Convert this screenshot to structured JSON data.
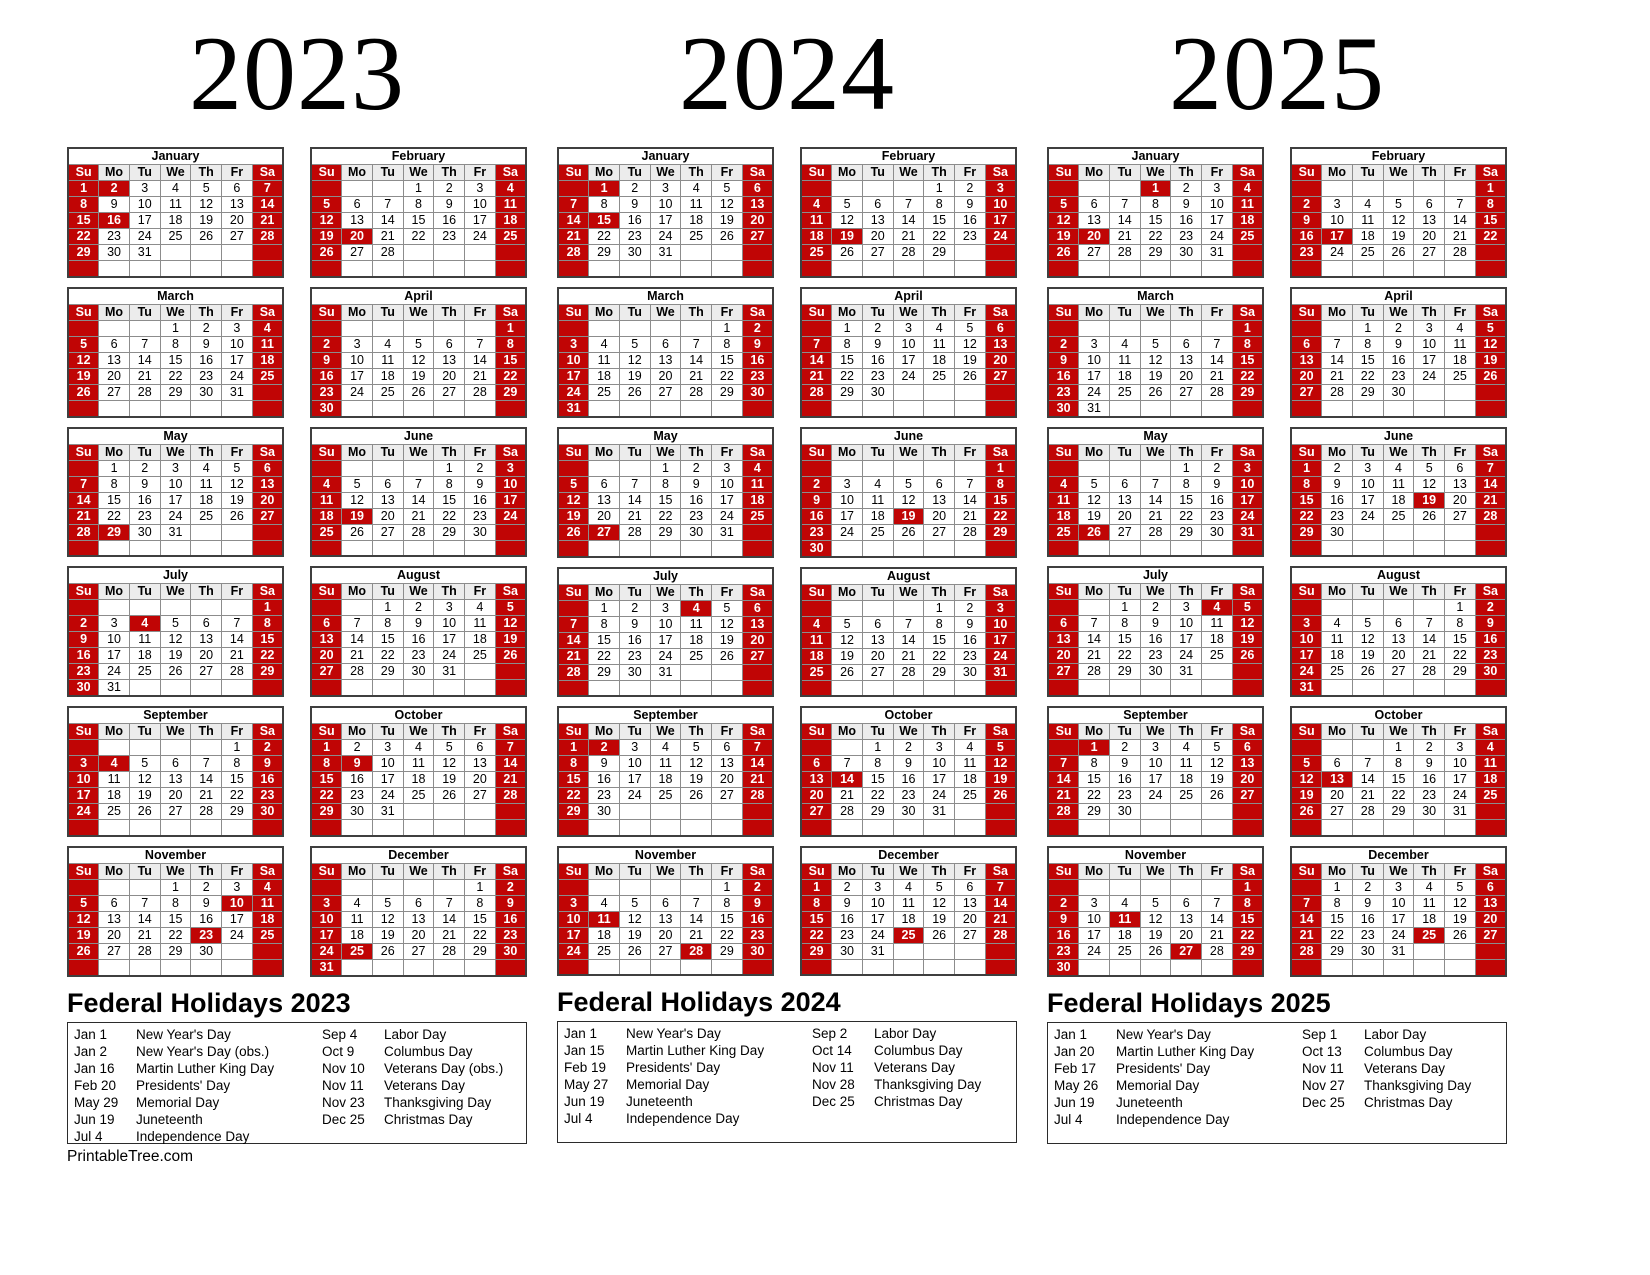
{
  "footer": "PrintableTree.com",
  "weekday_headers": [
    "Su",
    "Mo",
    "Tu",
    "We",
    "Th",
    "Fr",
    "Sa"
  ],
  "colors": {
    "highlight_red": "#c00505",
    "weekday_header_gray": "#ececec",
    "grid_gray": "#8c8c8c"
  },
  "years": [
    {
      "year": "2023",
      "holidays_title": "Federal Holidays 2023",
      "months": [
        {
          "name": "January",
          "first_day": 0,
          "days": 31,
          "highlighted": [
            1,
            2,
            16
          ]
        },
        {
          "name": "February",
          "first_day": 3,
          "days": 28,
          "highlighted": [
            20
          ]
        },
        {
          "name": "March",
          "first_day": 3,
          "days": 31,
          "highlighted": []
        },
        {
          "name": "April",
          "first_day": 6,
          "days": 30,
          "highlighted": []
        },
        {
          "name": "May",
          "first_day": 1,
          "days": 31,
          "highlighted": [
            29
          ]
        },
        {
          "name": "June",
          "first_day": 4,
          "days": 30,
          "highlighted": [
            19
          ]
        },
        {
          "name": "July",
          "first_day": 6,
          "days": 31,
          "highlighted": [
            4
          ]
        },
        {
          "name": "August",
          "first_day": 2,
          "days": 31,
          "highlighted": []
        },
        {
          "name": "September",
          "first_day": 5,
          "days": 30,
          "highlighted": [
            4
          ]
        },
        {
          "name": "October",
          "first_day": 0,
          "days": 31,
          "highlighted": [
            9
          ]
        },
        {
          "name": "November",
          "first_day": 3,
          "days": 30,
          "highlighted": [
            10,
            11,
            23
          ]
        },
        {
          "name": "December",
          "first_day": 5,
          "days": 31,
          "highlighted": [
            25
          ]
        }
      ],
      "holidays_left": [
        {
          "date": "Jan 1",
          "name": "New Year's Day"
        },
        {
          "date": "Jan 2",
          "name": "New Year's Day (obs.)"
        },
        {
          "date": "Jan 16",
          "name": "Martin Luther King Day"
        },
        {
          "date": "Feb 20",
          "name": "Presidents' Day"
        },
        {
          "date": "May 29",
          "name": "Memorial Day"
        },
        {
          "date": "Jun 19",
          "name": "Juneteenth"
        },
        {
          "date": "Jul 4",
          "name": "Independence Day"
        }
      ],
      "holidays_right": [
        {
          "date": "Sep 4",
          "name": "Labor Day"
        },
        {
          "date": "Oct 9",
          "name": "Columbus Day"
        },
        {
          "date": "Nov 10",
          "name": "Veterans Day (obs.)"
        },
        {
          "date": "Nov 11",
          "name": "Veterans Day"
        },
        {
          "date": "Nov 23",
          "name": "Thanksgiving Day"
        },
        {
          "date": "Dec 25",
          "name": "Christmas Day"
        }
      ]
    },
    {
      "year": "2024",
      "holidays_title": "Federal Holidays 2024",
      "months": [
        {
          "name": "January",
          "first_day": 1,
          "days": 31,
          "highlighted": [
            1,
            15
          ]
        },
        {
          "name": "February",
          "first_day": 4,
          "days": 29,
          "highlighted": [
            19
          ]
        },
        {
          "name": "March",
          "first_day": 5,
          "days": 31,
          "highlighted": []
        },
        {
          "name": "April",
          "first_day": 1,
          "days": 30,
          "highlighted": []
        },
        {
          "name": "May",
          "first_day": 3,
          "days": 31,
          "highlighted": [
            27
          ]
        },
        {
          "name": "June",
          "first_day": 6,
          "days": 30,
          "highlighted": [
            19
          ]
        },
        {
          "name": "July",
          "first_day": 1,
          "days": 31,
          "highlighted": [
            4
          ]
        },
        {
          "name": "August",
          "first_day": 4,
          "days": 31,
          "highlighted": []
        },
        {
          "name": "September",
          "first_day": 0,
          "days": 30,
          "highlighted": [
            2
          ]
        },
        {
          "name": "October",
          "first_day": 2,
          "days": 31,
          "highlighted": [
            14
          ]
        },
        {
          "name": "November",
          "first_day": 5,
          "days": 30,
          "highlighted": [
            11,
            28
          ]
        },
        {
          "name": "December",
          "first_day": 0,
          "days": 31,
          "highlighted": [
            25
          ]
        }
      ],
      "holidays_left": [
        {
          "date": "Jan 1",
          "name": "New Year's Day"
        },
        {
          "date": "Jan 15",
          "name": "Martin Luther King Day"
        },
        {
          "date": "Feb 19",
          "name": "Presidents' Day"
        },
        {
          "date": "May 27",
          "name": "Memorial Day"
        },
        {
          "date": "Jun 19",
          "name": "Juneteenth"
        },
        {
          "date": "Jul 4",
          "name": "Independence Day"
        }
      ],
      "holidays_right": [
        {
          "date": "Sep 2",
          "name": "Labor Day"
        },
        {
          "date": "Oct 14",
          "name": "Columbus Day"
        },
        {
          "date": "Nov 11",
          "name": "Veterans Day"
        },
        {
          "date": "Nov 28",
          "name": "Thanksgiving Day"
        },
        {
          "date": "Dec 25",
          "name": "Christmas Day"
        }
      ]
    },
    {
      "year": "2025",
      "holidays_title": "Federal Holidays 2025",
      "months": [
        {
          "name": "January",
          "first_day": 3,
          "days": 31,
          "highlighted": [
            1,
            20
          ]
        },
        {
          "name": "February",
          "first_day": 6,
          "days": 28,
          "highlighted": [
            17
          ]
        },
        {
          "name": "March",
          "first_day": 6,
          "days": 31,
          "highlighted": []
        },
        {
          "name": "April",
          "first_day": 2,
          "days": 30,
          "highlighted": []
        },
        {
          "name": "May",
          "first_day": 4,
          "days": 31,
          "highlighted": [
            26
          ]
        },
        {
          "name": "June",
          "first_day": 0,
          "days": 30,
          "highlighted": [
            19
          ]
        },
        {
          "name": "July",
          "first_day": 2,
          "days": 31,
          "highlighted": [
            4
          ]
        },
        {
          "name": "August",
          "first_day": 5,
          "days": 31,
          "highlighted": []
        },
        {
          "name": "September",
          "first_day": 1,
          "days": 30,
          "highlighted": [
            1
          ]
        },
        {
          "name": "October",
          "first_day": 3,
          "days": 31,
          "highlighted": [
            13
          ]
        },
        {
          "name": "November",
          "first_day": 6,
          "days": 30,
          "highlighted": [
            11,
            27
          ]
        },
        {
          "name": "December",
          "first_day": 1,
          "days": 31,
          "highlighted": [
            25
          ]
        }
      ],
      "holidays_left": [
        {
          "date": "Jan 1",
          "name": "New Year's Day"
        },
        {
          "date": "Jan 20",
          "name": "Martin Luther King Day"
        },
        {
          "date": "Feb 17",
          "name": "Presidents' Day"
        },
        {
          "date": "May 26",
          "name": "Memorial Day"
        },
        {
          "date": "Jun 19",
          "name": "Juneteenth"
        },
        {
          "date": "Jul 4",
          "name": "Independence Day"
        }
      ],
      "holidays_right": [
        {
          "date": "Sep 1",
          "name": "Labor Day"
        },
        {
          "date": "Oct 13",
          "name": "Columbus Day"
        },
        {
          "date": "Nov 11",
          "name": "Veterans Day"
        },
        {
          "date": "Nov 27",
          "name": "Thanksgiving Day"
        },
        {
          "date": "Dec 25",
          "name": "Christmas Day"
        }
      ]
    }
  ]
}
